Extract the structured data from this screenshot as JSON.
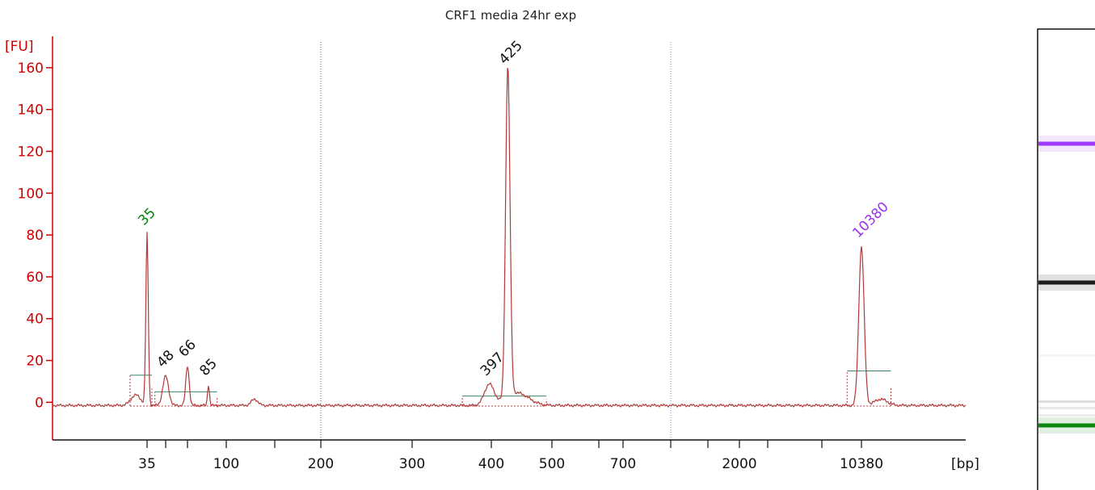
{
  "chart_data": {
    "type": "line",
    "title": "CRF1 media 24hr exp",
    "ylabel": "[FU]",
    "xlabel": "[bp]",
    "ylim": [
      -18,
      175
    ],
    "y_ticks": [
      0,
      20,
      40,
      60,
      80,
      100,
      120,
      140,
      160
    ],
    "x_tick_labels": [
      "35",
      "100",
      "200",
      "300",
      "400",
      "500",
      "700",
      "2000",
      "10380"
    ],
    "x_tick_bp": [
      35,
      100,
      200,
      300,
      400,
      500,
      700,
      2000,
      10380
    ],
    "x_minor_tick_bp": [
      48,
      66,
      150,
      600,
      1000,
      1500,
      3000,
      7000
    ],
    "dotted_vertical_bp": [
      200,
      1000
    ],
    "baseline_fu": -1.5,
    "series": [
      {
        "color": "#b23a3a",
        "peaks": [
          {
            "label": "35",
            "x_bp": 35,
            "height_fu": 82,
            "width_bp_units": 0.25,
            "label_color": "#008000"
          },
          {
            "label": "48",
            "x_bp": 48,
            "height_fu": 14,
            "width_bp_units": 0.6,
            "label_color": "#111111"
          },
          {
            "label": "66",
            "x_bp": 66,
            "height_fu": 19,
            "width_bp_units": 0.35,
            "label_color": "#111111"
          },
          {
            "label": "85",
            "x_bp": 85,
            "height_fu": 10,
            "width_bp_units": 0.2,
            "label_color": "#111111"
          },
          {
            "label": "397",
            "x_bp": 397,
            "height_fu": 10,
            "width_bp_units": 1.0,
            "label_color": "#111111"
          },
          {
            "label": "425",
            "x_bp": 425,
            "height_fu": 159,
            "width_bp_units": 0.45,
            "label_color": "#111111"
          },
          {
            "label": "10380",
            "x_bp": 10380,
            "height_fu": 76,
            "width_bp_units": 0.55,
            "label_color": "#9933ee"
          }
        ]
      }
    ],
    "gel_lane": {
      "bands": [
        {
          "label": "10380",
          "color": "#9b30ff",
          "strength": 1.0
        },
        {
          "label": "425",
          "color": "#111111",
          "strength": 1.0
        },
        {
          "label": "35",
          "color": "#008000",
          "strength": 1.0
        }
      ]
    }
  }
}
